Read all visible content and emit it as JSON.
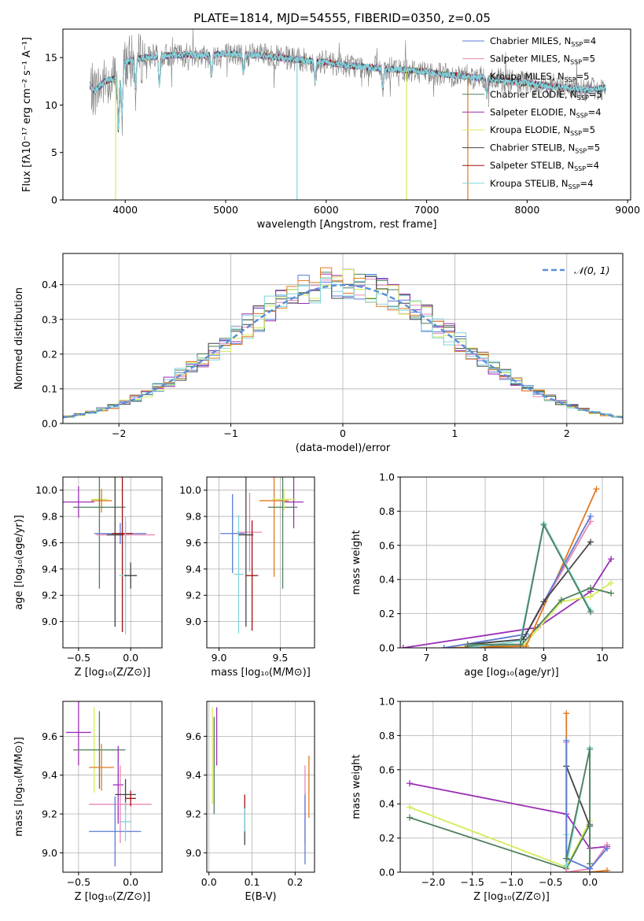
{
  "figure": {
    "title": "PLATE=1814, MJD=54555, FIBERID=0350, z=0.05"
  },
  "colors": {
    "chabrier_miles": "#5b7bd6",
    "salpeter_miles": "#e887b3",
    "kroupa_miles": "#8fd4e0",
    "chabrier_elodie": "#4f7f5f",
    "salpeter_elodie": "#9a2fb5",
    "kroupa_elodie": "#d4ec59",
    "chabrier_stelib": "#444444",
    "salpeter_stelib": "#a01010",
    "kroupa_stelib": "#7fd6dc",
    "orange": "#e07a22",
    "gauss": "#5b8fd6",
    "grid": "#b0b0b0"
  },
  "chart_data": [
    {
      "id": "spectrum",
      "type": "line",
      "title": "PLATE=1814, MJD=54555, FIBERID=0350, z=0.05",
      "xlabel": "wavelength [Angstrom, rest frame]",
      "ylabel": "Flux [fλ10⁻¹⁷ erg cm⁻² s⁻¹ A⁻¹]",
      "xlim": [
        3380,
        9030
      ],
      "ylim": [
        0,
        18
      ],
      "xticks": [
        4000,
        5000,
        6000,
        7000,
        8000,
        9000
      ],
      "yticks": [
        0,
        5,
        10,
        15
      ],
      "grid": false,
      "legend_position": "top-right",
      "legend": [
        {
          "label": "Chabrier MILES, N",
          "sub": "SSP",
          "eq": "=4",
          "color": "chabrier_miles"
        },
        {
          "label": "Salpeter MILES, N",
          "sub": "SSP",
          "eq": "=5",
          "color": "salpeter_miles"
        },
        {
          "label": "Kroupa MILES, N",
          "sub": "SSP",
          "eq": "=5",
          "color": "kroupa_miles"
        },
        {
          "label": "Chabrier ELODIE, N",
          "sub": "SSP",
          "eq": "=5",
          "color": "chabrier_elodie"
        },
        {
          "label": "Salpeter ELODIE, N",
          "sub": "SSP",
          "eq": "=4",
          "color": "salpeter_elodie"
        },
        {
          "label": "Kroupa ELODIE, N",
          "sub": "SSP",
          "eq": "=5",
          "color": "kroupa_elodie"
        },
        {
          "label": "Chabrier STELIB, N",
          "sub": "SSP",
          "eq": "=5",
          "color": "chabrier_stelib"
        },
        {
          "label": "Salpeter STELIB, N",
          "sub": "SSP",
          "eq": "=4",
          "color": "salpeter_stelib"
        },
        {
          "label": "Kroupa STELIB, N",
          "sub": "SSP",
          "eq": "=4",
          "color": "kroupa_stelib"
        }
      ],
      "continuum": {
        "x": [
          3650,
          3700,
          3800,
          3900,
          4000,
          4100,
          4200,
          4400,
          4600,
          4800,
          5000,
          5200,
          5400,
          5600,
          5800,
          6000,
          6200,
          6400,
          6600,
          6800,
          7000,
          7200,
          7400,
          7600,
          7800,
          8000,
          8200,
          8400,
          8600,
          8780
        ],
        "y": [
          12.0,
          11.5,
          12.5,
          12.8,
          14.5,
          14.8,
          15.0,
          15.2,
          15.3,
          15.2,
          15.4,
          15.3,
          15.2,
          14.9,
          14.7,
          14.5,
          14.2,
          14.0,
          13.8,
          13.7,
          13.5,
          13.2,
          13.0,
          12.8,
          12.5,
          12.3,
          12.0,
          11.8,
          11.6,
          11.8
        ]
      },
      "drops": [
        {
          "x": 3905,
          "y": 0,
          "color": "kroupa_elodie"
        },
        {
          "x": 5710,
          "y": 0,
          "color": "kroupa_stelib"
        },
        {
          "x": 6800,
          "y": 0,
          "color": "kroupa_elodie"
        },
        {
          "x": 7410,
          "y": 0,
          "color": "orange"
        }
      ]
    },
    {
      "id": "residuals",
      "type": "step",
      "xlabel": "(data-model)/error",
      "ylabel": "Normed distribution",
      "xlim": [
        -2.5,
        2.5
      ],
      "ylim": [
        0,
        0.49
      ],
      "xticks": [
        -2,
        -1,
        0,
        1,
        2
      ],
      "yticks": [
        0.0,
        0.1,
        0.2,
        0.3,
        0.4
      ],
      "grid": true,
      "legend_position": "top-right",
      "gauss_label": "𝒩(0, 1)",
      "bin_width": 0.1
    },
    {
      "id": "age-vs-Z",
      "type": "errorbar",
      "xlabel": "Z [log₁₀(Z/Z⊙)]",
      "ylabel": "age  [log₁₀(age/yr)]",
      "xlim": [
        -0.65,
        0.3
      ],
      "ylim": [
        8.8,
        10.1
      ],
      "xticks": [
        -0.5,
        0.0
      ],
      "yticks": [
        9.0,
        9.2,
        9.4,
        9.6,
        9.8,
        10.0
      ],
      "grid": true,
      "points": [
        {
          "x": -0.5,
          "y": 9.91,
          "xerr": 0.15,
          "yerr": 0.12,
          "color": "salpeter_elodie"
        },
        {
          "x": -0.3,
          "y": 9.93,
          "xerr": 0.08,
          "yerr": 0.1,
          "color": "kroupa_elodie"
        },
        {
          "x": -0.28,
          "y": 9.92,
          "xerr": 0.1,
          "yerr": 0.09,
          "color": "orange"
        },
        {
          "x": -0.3,
          "y": 9.87,
          "xerr": 0.25,
          "yerr": 0.62,
          "color": "chabrier_elodie"
        },
        {
          "x": -0.1,
          "y": 9.67,
          "xerr": 0.25,
          "yerr": 0.08,
          "color": "chabrier_miles"
        },
        {
          "x": -0.05,
          "y": 9.66,
          "xerr": 0.28,
          "yerr": 0.1,
          "color": "salpeter_miles"
        },
        {
          "x": -0.15,
          "y": 9.66,
          "xerr": 0.08,
          "yerr": 0.7,
          "color": "chabrier_stelib"
        },
        {
          "x": -0.08,
          "y": 9.67,
          "xerr": 0.1,
          "yerr": 0.75,
          "color": "salpeter_stelib"
        },
        {
          "x": -0.05,
          "y": 9.35,
          "xerr": 0.06,
          "yerr": 0.45,
          "color": "kroupa_stelib"
        },
        {
          "x": 0.0,
          "y": 9.35,
          "xerr": 0.06,
          "yerr": 0.1,
          "color": "chabrier_stelib"
        }
      ]
    },
    {
      "id": "age-vs-mass",
      "type": "errorbar",
      "xlabel": "mass [log₁₀(M/M⊙)]",
      "ylabel": "",
      "xlim": [
        8.9,
        9.78
      ],
      "ylim": [
        8.8,
        10.1
      ],
      "xticks": [
        9.0,
        9.5
      ],
      "yticks": [
        9.0,
        9.2,
        9.4,
        9.6,
        9.8,
        10.0
      ],
      "grid": true,
      "points": [
        {
          "x": 9.11,
          "y": 9.67,
          "xerr": 0.1,
          "yerr": 0.3,
          "color": "chabrier_miles"
        },
        {
          "x": 9.25,
          "y": 9.68,
          "xerr": 0.1,
          "yerr": 0.3,
          "color": "salpeter_miles"
        },
        {
          "x": 9.16,
          "y": 9.36,
          "xerr": 0.04,
          "yerr": 0.45,
          "color": "kroupa_stelib"
        },
        {
          "x": 9.22,
          "y": 9.66,
          "xerr": 0.06,
          "yerr": 0.7,
          "color": "chabrier_stelib"
        },
        {
          "x": 9.27,
          "y": 9.35,
          "xerr": 0.05,
          "yerr": 0.42,
          "color": "salpeter_stelib"
        },
        {
          "x": 9.45,
          "y": 9.92,
          "xerr": 0.12,
          "yerr": 0.58,
          "color": "orange"
        },
        {
          "x": 9.52,
          "y": 9.87,
          "xerr": 0.12,
          "yerr": 0.62,
          "color": "chabrier_elodie"
        },
        {
          "x": 9.61,
          "y": 9.91,
          "xerr": 0.08,
          "yerr": 0.2,
          "color": "salpeter_elodie"
        },
        {
          "x": 9.53,
          "y": 9.93,
          "xerr": 0.1,
          "yerr": 0.08,
          "color": "kroupa_elodie"
        }
      ]
    },
    {
      "id": "weight-vs-age",
      "type": "line",
      "xlabel": "age  [log₁₀(age/yr)]",
      "ylabel": "mass weight",
      "xlim": [
        6.55,
        10.35
      ],
      "ylim": [
        0,
        1.0
      ],
      "xticks": [
        7,
        8,
        9,
        10
      ],
      "yticks": [
        0.0,
        0.2,
        0.4,
        0.6,
        0.8,
        1.0
      ],
      "grid": true,
      "series": [
        {
          "color": "salpeter_elodie",
          "x": [
            6.6,
            8.9,
            9.8,
            10.15
          ],
          "y": [
            0.0,
            0.12,
            0.33,
            0.52
          ]
        },
        {
          "color": "kroupa_elodie",
          "x": [
            8.0,
            8.65,
            9.3,
            9.8,
            10.15
          ],
          "y": [
            0.0,
            0.01,
            0.27,
            0.3,
            0.38
          ]
        },
        {
          "color": "chabrier_elodie",
          "x": [
            7.7,
            8.6,
            9.3,
            9.8,
            10.15
          ],
          "y": [
            0.01,
            0.01,
            0.28,
            0.35,
            0.32
          ]
        },
        {
          "color": "orange",
          "x": [
            7.3,
            8.7,
            9.9
          ],
          "y": [
            0.0,
            0.01,
            0.93
          ]
        },
        {
          "color": "salpeter_miles",
          "x": [
            7.3,
            8.7,
            9.8
          ],
          "y": [
            0.0,
            0.08,
            0.74
          ]
        },
        {
          "color": "chabrier_miles",
          "x": [
            7.3,
            8.7,
            9.8
          ],
          "y": [
            0.0,
            0.08,
            0.77
          ]
        },
        {
          "color": "chabrier_stelib",
          "x": [
            7.7,
            8.65,
            9.0,
            9.8
          ],
          "y": [
            0.02,
            0.05,
            0.27,
            0.62
          ]
        },
        {
          "color": "kroupa_stelib",
          "x": [
            7.7,
            8.6,
            9.0,
            9.8
          ],
          "y": [
            0.0,
            0.04,
            0.73,
            0.22
          ]
        },
        {
          "color": "chabrier_elodie",
          "x": [
            7.7,
            8.6,
            9.0,
            9.8
          ],
          "y": [
            0.02,
            0.02,
            0.72,
            0.21
          ]
        }
      ]
    },
    {
      "id": "mass-vs-Z",
      "type": "errorbar",
      "xlabel": "Z [log₁₀(Z/Z⊙)]",
      "ylabel": "mass [log₁₀(M/M⊙)]",
      "xlim": [
        -0.65,
        0.3
      ],
      "ylim": [
        8.9,
        9.78
      ],
      "xticks": [
        -0.5,
        0.0
      ],
      "yticks": [
        9.0,
        9.2,
        9.4,
        9.6
      ],
      "grid": true,
      "points": [
        {
          "x": -0.5,
          "y": 9.62,
          "xerr": 0.12,
          "yerr": 0.17,
          "color": "salpeter_elodie"
        },
        {
          "x": -0.35,
          "y": 9.53,
          "xerr": 0.2,
          "yerr": 0.22,
          "color": "kroupa_elodie"
        },
        {
          "x": -0.3,
          "y": 9.53,
          "xerr": 0.25,
          "yerr": 0.2,
          "color": "chabrier_elodie"
        },
        {
          "x": -0.28,
          "y": 9.44,
          "xerr": 0.12,
          "yerr": 0.12,
          "color": "orange"
        },
        {
          "x": -0.12,
          "y": 9.35,
          "xerr": 0.05,
          "yerr": 0.2,
          "color": "salpeter_elodie"
        },
        {
          "x": -0.1,
          "y": 9.25,
          "xerr": 0.3,
          "yerr": 0.2,
          "color": "salpeter_miles"
        },
        {
          "x": -0.15,
          "y": 9.11,
          "xerr": 0.25,
          "yerr": 0.18,
          "color": "chabrier_miles"
        },
        {
          "x": -0.05,
          "y": 9.3,
          "xerr": 0.1,
          "yerr": 0.08,
          "color": "chabrier_stelib"
        },
        {
          "x": 0.0,
          "y": 9.28,
          "xerr": 0.05,
          "yerr": 0.04,
          "color": "salpeter_stelib"
        },
        {
          "x": -0.05,
          "y": 9.16,
          "xerr": 0.06,
          "yerr": 0.1,
          "color": "kroupa_stelib"
        }
      ]
    },
    {
      "id": "mass-vs-EBV",
      "type": "errorbar",
      "xlabel": "E(B-V)",
      "ylabel": "",
      "xlim": [
        -0.005,
        0.245
      ],
      "ylim": [
        8.9,
        9.78
      ],
      "xticks": [
        0.0,
        0.1,
        0.2
      ],
      "yticks": [
        9.0,
        9.2,
        9.4,
        9.6
      ],
      "grid": true,
      "points": [
        {
          "x": 0.008,
          "y": 9.5,
          "xerr": 0,
          "yerr": 0.25,
          "color": "kroupa_elodie"
        },
        {
          "x": 0.012,
          "y": 9.45,
          "xerr": 0,
          "yerr": 0.25,
          "color": "chabrier_elodie"
        },
        {
          "x": 0.018,
          "y": 9.6,
          "xerr": 0,
          "yerr": 0.15,
          "color": "salpeter_elodie"
        },
        {
          "x": 0.083,
          "y": 9.26,
          "xerr": 0,
          "yerr": 0.04,
          "color": "salpeter_stelib"
        },
        {
          "x": 0.083,
          "y": 9.14,
          "xerr": 0,
          "yerr": 0.1,
          "color": "chabrier_stelib"
        },
        {
          "x": 0.083,
          "y": 9.17,
          "xerr": 0,
          "yerr": 0.06,
          "color": "kroupa_stelib"
        },
        {
          "x": 0.223,
          "y": 9.25,
          "xerr": 0,
          "yerr": 0.2,
          "color": "salpeter_miles"
        },
        {
          "x": 0.223,
          "y": 9.12,
          "xerr": 0,
          "yerr": 0.18,
          "color": "chabrier_miles"
        },
        {
          "x": 0.232,
          "y": 9.34,
          "xerr": 0,
          "yerr": 0.16,
          "color": "orange"
        }
      ]
    },
    {
      "id": "weight-vs-Z",
      "type": "line",
      "xlabel": "Z [log₁₀(Z/Z⊙)]",
      "ylabel": "mass weight",
      "xlim": [
        -2.42,
        0.42
      ],
      "ylim": [
        0,
        1.0
      ],
      "xticks": [
        -2.0,
        -1.5,
        -1.0,
        -0.5,
        0.0
      ],
      "yticks": [
        0.0,
        0.2,
        0.4,
        0.6,
        0.8,
        1.0
      ],
      "grid": true,
      "series": [
        {
          "color": "salpeter_elodie",
          "x": [
            -2.3,
            -0.3,
            0.0,
            0.22
          ],
          "y": [
            0.52,
            0.34,
            0.14,
            0.15
          ]
        },
        {
          "color": "kroupa_elodie",
          "x": [
            -2.3,
            -0.3,
            0.0
          ],
          "y": [
            0.38,
            0.03,
            0.3
          ]
        },
        {
          "color": "chabrier_elodie",
          "x": [
            -2.3,
            -0.3,
            0.0
          ],
          "y": [
            0.32,
            0.02,
            0.28
          ]
        },
        {
          "color": "orange",
          "x": [
            -0.3,
            -0.3,
            0.0,
            0.22
          ],
          "y": [
            0.93,
            0.0,
            0.0,
            0.01
          ]
        },
        {
          "color": "salpeter_miles",
          "x": [
            -0.3,
            -0.3,
            0.0,
            0.22
          ],
          "y": [
            0.76,
            0.0,
            0.02,
            0.16
          ]
        },
        {
          "color": "chabrier_stelib",
          "x": [
            -0.3,
            0.0,
            0.0
          ],
          "y": [
            0.62,
            0.27,
            0.0
          ]
        },
        {
          "color": "kroupa_stelib",
          "x": [
            -0.3,
            -0.3,
            0.0,
            0.0
          ],
          "y": [
            0.22,
            0.04,
            0.73,
            0.05
          ]
        },
        {
          "color": "chabrier_miles",
          "x": [
            -0.3,
            -0.3,
            0.0,
            0.22
          ],
          "y": [
            0.77,
            0.08,
            0.02,
            0.14
          ]
        },
        {
          "color": "chabrier_elodie",
          "x": [
            -0.3,
            0.0,
            0.0
          ],
          "y": [
            0.08,
            0.72,
            0.05
          ]
        }
      ]
    }
  ]
}
